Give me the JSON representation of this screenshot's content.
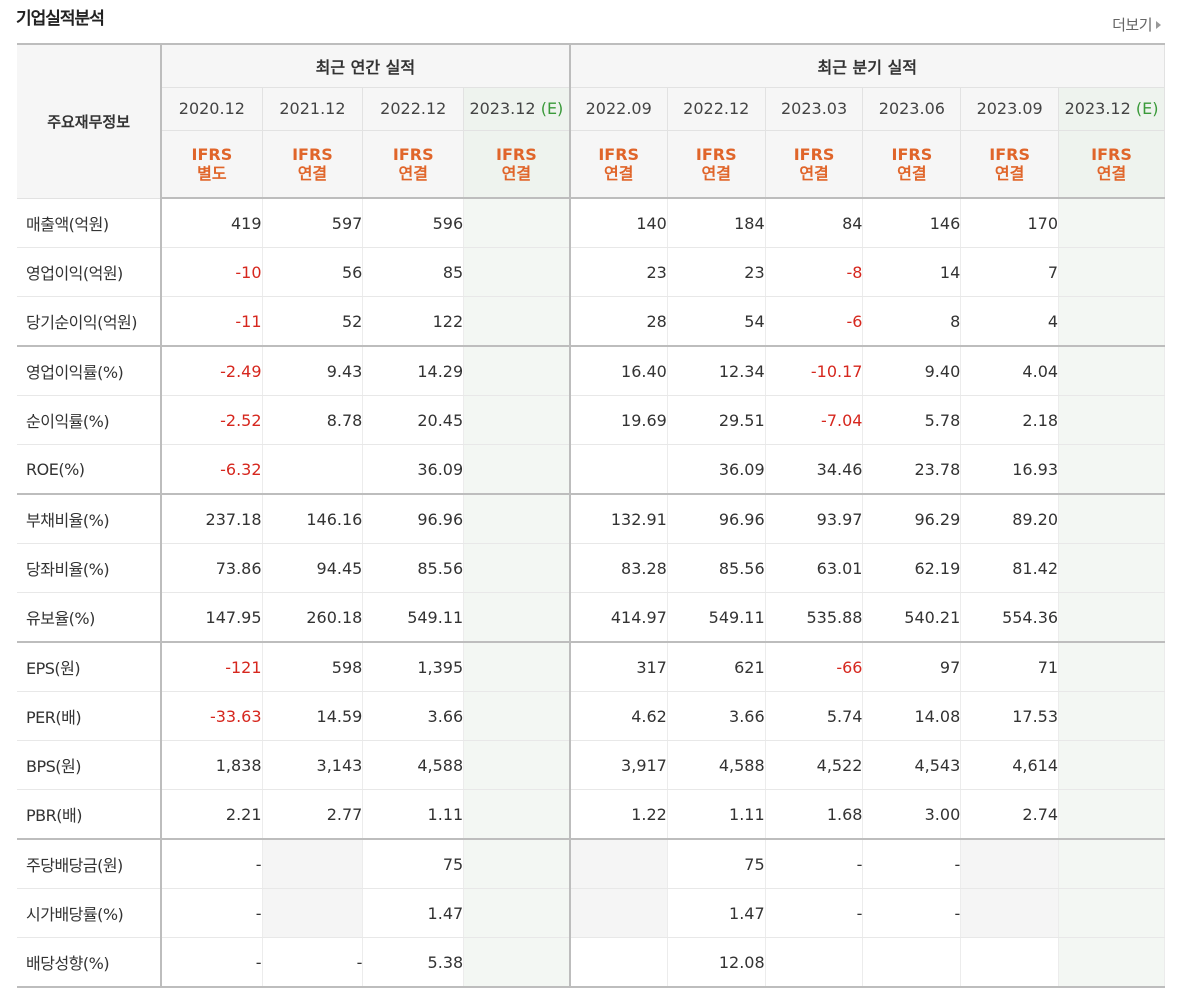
{
  "header": {
    "title": "기업실적분석",
    "more_label": "더보기"
  },
  "table": {
    "corner_label": "주요재무정보",
    "annual_group": "최근 연간 실적",
    "quarter_group": "최근 분기 실적",
    "annual_periods": [
      "2020.12",
      "2021.12",
      "2022.12",
      "2023.12"
    ],
    "annual_estimate_mark": "(E)",
    "quarter_periods": [
      "2022.09",
      "2022.12",
      "2023.03",
      "2023.06",
      "2023.09",
      "2023.12"
    ],
    "quarter_estimate_mark": "(E)",
    "annual_basis": [
      [
        "IFRS",
        "별도"
      ],
      [
        "IFRS",
        "연결"
      ],
      [
        "IFRS",
        "연결"
      ],
      [
        "IFRS",
        "연결"
      ]
    ],
    "quarter_basis": [
      [
        "IFRS",
        "연결"
      ],
      [
        "IFRS",
        "연결"
      ],
      [
        "IFRS",
        "연결"
      ],
      [
        "IFRS",
        "연결"
      ],
      [
        "IFRS",
        "연결"
      ],
      [
        "IFRS",
        "연결"
      ]
    ],
    "rows": [
      {
        "label": "매출액(억원)",
        "annual": [
          "419",
          "597",
          "596",
          ""
        ],
        "quarter": [
          "140",
          "184",
          "84",
          "146",
          "170",
          ""
        ]
      },
      {
        "label": "영업이익(억원)",
        "annual": [
          "-10",
          "56",
          "85",
          ""
        ],
        "quarter": [
          "23",
          "23",
          "-8",
          "14",
          "7",
          ""
        ]
      },
      {
        "label": "당기순이익(억원)",
        "annual": [
          "-11",
          "52",
          "122",
          ""
        ],
        "quarter": [
          "28",
          "54",
          "-6",
          "8",
          "4",
          ""
        ]
      },
      {
        "label": "영업이익률(%)",
        "annual": [
          "-2.49",
          "9.43",
          "14.29",
          ""
        ],
        "quarter": [
          "16.40",
          "12.34",
          "-10.17",
          "9.40",
          "4.04",
          ""
        ]
      },
      {
        "label": "순이익률(%)",
        "annual": [
          "-2.52",
          "8.78",
          "20.45",
          ""
        ],
        "quarter": [
          "19.69",
          "29.51",
          "-7.04",
          "5.78",
          "2.18",
          ""
        ]
      },
      {
        "label": "ROE(%)",
        "annual": [
          "-6.32",
          "",
          "36.09",
          ""
        ],
        "quarter": [
          "",
          "36.09",
          "34.46",
          "23.78",
          "16.93",
          ""
        ]
      },
      {
        "label": "부채비율(%)",
        "annual": [
          "237.18",
          "146.16",
          "96.96",
          ""
        ],
        "quarter": [
          "132.91",
          "96.96",
          "93.97",
          "96.29",
          "89.20",
          ""
        ]
      },
      {
        "label": "당좌비율(%)",
        "annual": [
          "73.86",
          "94.45",
          "85.56",
          ""
        ],
        "quarter": [
          "83.28",
          "85.56",
          "63.01",
          "62.19",
          "81.42",
          ""
        ]
      },
      {
        "label": "유보율(%)",
        "annual": [
          "147.95",
          "260.18",
          "549.11",
          ""
        ],
        "quarter": [
          "414.97",
          "549.11",
          "535.88",
          "540.21",
          "554.36",
          ""
        ]
      },
      {
        "label": "EPS(원)",
        "annual": [
          "-121",
          "598",
          "1,395",
          ""
        ],
        "quarter": [
          "317",
          "621",
          "-66",
          "97",
          "71",
          ""
        ]
      },
      {
        "label": "PER(배)",
        "annual": [
          "-33.63",
          "14.59",
          "3.66",
          ""
        ],
        "quarter": [
          "4.62",
          "3.66",
          "5.74",
          "14.08",
          "17.53",
          ""
        ]
      },
      {
        "label": "BPS(원)",
        "annual": [
          "1,838",
          "3,143",
          "4,588",
          ""
        ],
        "quarter": [
          "3,917",
          "4,588",
          "4,522",
          "4,543",
          "4,614",
          ""
        ]
      },
      {
        "label": "PBR(배)",
        "annual": [
          "2.21",
          "2.77",
          "1.11",
          ""
        ],
        "quarter": [
          "1.22",
          "1.11",
          "1.68",
          "3.00",
          "2.74",
          ""
        ]
      },
      {
        "label": "주당배당금(원)",
        "annual": [
          "-",
          "",
          "75",
          ""
        ],
        "quarter": [
          "",
          "75",
          "-",
          "-",
          "",
          ""
        ]
      },
      {
        "label": "시가배당률(%)",
        "annual": [
          "-",
          "",
          "1.47",
          ""
        ],
        "quarter": [
          "",
          "1.47",
          "-",
          "-",
          "",
          ""
        ]
      },
      {
        "label": "배당성향(%)",
        "annual": [
          "-",
          "-",
          "5.38",
          ""
        ],
        "quarter": [
          "",
          "12.08",
          "",
          "",
          "",
          ""
        ]
      }
    ]
  },
  "colors": {
    "negative": "#d6271e",
    "ifrs": "#e0652a",
    "estimate": "#3a9a3a"
  }
}
